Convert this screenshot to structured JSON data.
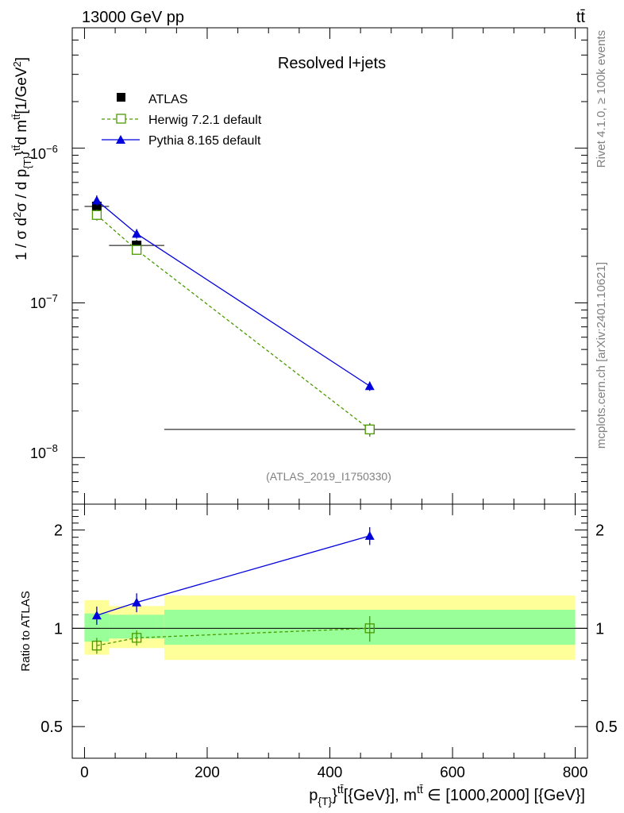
{
  "header": {
    "left": "13000 GeV pp",
    "right": "tt̄"
  },
  "side_labels": {
    "rivet": "Rivet 4.1.0, ≥ 100k events",
    "mcplots": "mcplots.cern.ch [arXiv:2401.10621]"
  },
  "chart_data": [
    {
      "type": "scatter",
      "title": "Resolved l+jets",
      "watermark": "(ATLAS_2019_I1750330)",
      "ylabel": "1 / σ d²σ / d p_{T}^{tt̄} d m^{tt̄} [1/GeV²]",
      "yscale": "log",
      "ylim": [
        5e-09,
        6e-06
      ],
      "xlim": [
        -20,
        820
      ],
      "y_tick_labels": [
        "10^{-8}",
        "10^{-7}",
        "10^{-6}"
      ],
      "legend": {
        "placement": "top-left",
        "entries": [
          "ATLAS",
          "Herwig 7.2.1 default",
          "Pythia 8.165 default"
        ]
      },
      "series": [
        {
          "name": "ATLAS",
          "color": "#000000",
          "marker": "filled-square",
          "bins": [
            [
              0,
              40
            ],
            [
              40,
              130
            ],
            [
              130,
              800
            ]
          ],
          "x": [
            20,
            85,
            465
          ],
          "y": [
            4.2e-07,
            2.35e-07,
            1.52e-08
          ],
          "yerr": [
            4e-08,
            2e-08,
            1.5e-09
          ]
        },
        {
          "name": "Herwig 7.2.1 default",
          "color": "#4a9a00",
          "marker": "open-square",
          "line": "dashed",
          "x": [
            20,
            85,
            465
          ],
          "y": [
            3.7e-07,
            2.2e-07,
            1.52e-08
          ],
          "yerr": [
            3e-08,
            1.5e-08,
            1.5e-09
          ]
        },
        {
          "name": "Pythia 8.165 default",
          "color": "#0000dd",
          "marker": "filled-triangle",
          "line": "solid",
          "x": [
            20,
            85,
            465
          ],
          "y": [
            4.6e-07,
            2.8e-07,
            2.9e-08
          ],
          "yerr": [
            3.5e-08,
            2e-08,
            2e-09
          ]
        }
      ]
    },
    {
      "type": "scatter",
      "ylabel": "Ratio to ATLAS",
      "xlabel": "p_{T}^{tt̄} [{GeV}], m^{tt̄} ∈ [1000,2000] [{GeV}]",
      "yscale": "log",
      "ylim": [
        0.4,
        2.4
      ],
      "xlim": [
        -20,
        820
      ],
      "x_ticks": [
        0,
        200,
        400,
        600,
        800
      ],
      "y_ticks": [
        0.5,
        1,
        2
      ],
      "y_tick_labels": [
        "0.5",
        "1",
        "2"
      ],
      "bands": {
        "bins": [
          [
            0,
            40
          ],
          [
            40,
            130
          ],
          [
            130,
            800
          ]
        ],
        "inner": [
          [
            0.91,
            1.11
          ],
          [
            0.93,
            1.1
          ],
          [
            0.89,
            1.14
          ]
        ],
        "outer": [
          [
            0.83,
            1.22
          ],
          [
            0.87,
            1.17
          ],
          [
            0.8,
            1.26
          ]
        ],
        "inner_color": "#99ff99",
        "outer_color": "#ffff99"
      },
      "series": [
        {
          "name": "Herwig 7.2.1 default",
          "color": "#4a9a00",
          "x": [
            20,
            85,
            465
          ],
          "y": [
            0.885,
            0.935,
            1.0
          ],
          "yerr": [
            0.05,
            0.05,
            0.09
          ]
        },
        {
          "name": "Pythia 8.165 default",
          "color": "#0000dd",
          "x": [
            20,
            85,
            465
          ],
          "y": [
            1.095,
            1.2,
            1.92
          ],
          "yerr": [
            0.07,
            0.08,
            0.12
          ]
        }
      ]
    }
  ]
}
